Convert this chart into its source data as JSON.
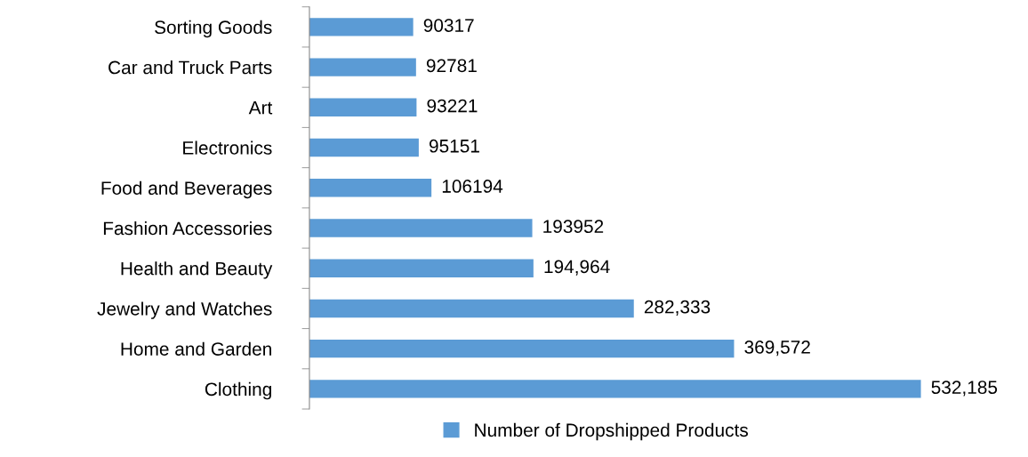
{
  "chart_data": {
    "type": "bar",
    "orientation": "horizontal",
    "categories": [
      "Sorting Goods",
      "Car and Truck Parts",
      "Art",
      "Electronics",
      "Food and Beverages",
      "Fashion Accessories",
      "Health and Beauty",
      "Jewelry and Watches",
      "Home and Garden",
      "Clothing"
    ],
    "series": [
      {
        "name": "Number of Dropshipped Products",
        "color": "#5b9bd5",
        "values": [
          90317,
          92781,
          93221,
          95151,
          106194,
          193952,
          194964,
          282333,
          369572,
          532185
        ],
        "value_labels": [
          "90317",
          "92781",
          "93221",
          "95151",
          "106194",
          "193952",
          "194,964",
          "282,333",
          "369,572",
          "532,185"
        ]
      }
    ],
    "tick_labels": "y",
    "grid": false,
    "legend": "bottom"
  }
}
